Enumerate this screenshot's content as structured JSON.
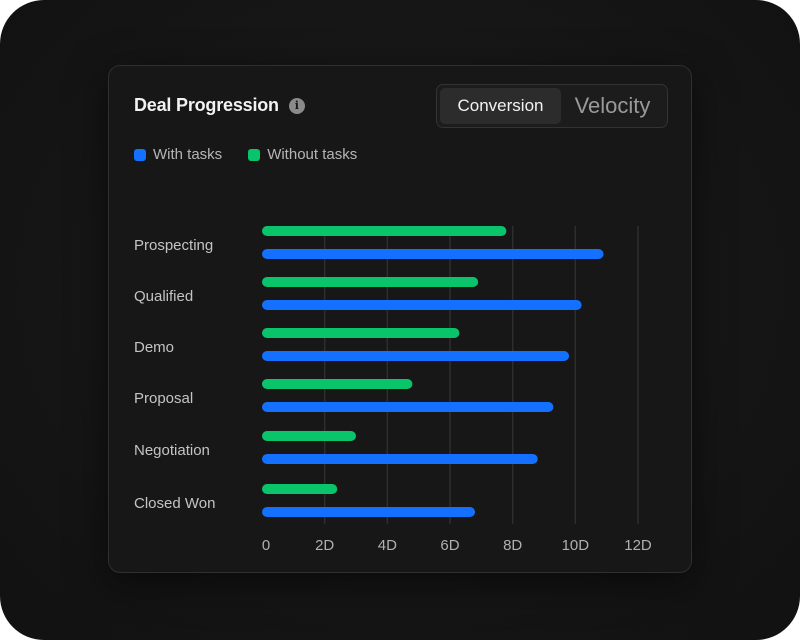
{
  "card": {
    "title": "Deal Progression",
    "info_glyph": "i"
  },
  "toggle": {
    "options": [
      "Conversion",
      "Velocity"
    ],
    "selected": "Conversion"
  },
  "colors": {
    "with_tasks": "#1470ff",
    "without_tasks": "#0ac46c",
    "grid": "#2e2e2e",
    "axis_text": "#b0b0b0",
    "label_text": "#c4c4c4"
  },
  "chart_data": {
    "type": "bar",
    "orientation": "horizontal",
    "categories": [
      "Prospecting",
      "Qualified",
      "Demo",
      "Proposal",
      "Negotiation",
      "Closed Won"
    ],
    "series": [
      {
        "name": "Without tasks",
        "color": "#0ac46c",
        "values": [
          7.8,
          6.9,
          6.3,
          4.8,
          3.0,
          2.4
        ]
      },
      {
        "name": "With tasks",
        "color": "#1470ff",
        "values": [
          10.9,
          10.2,
          9.8,
          9.3,
          8.8,
          6.8
        ]
      }
    ],
    "x_ticks": [
      0,
      2,
      4,
      6,
      8,
      10,
      12
    ],
    "x_tick_labels": [
      "0",
      "2D",
      "4D",
      "6D",
      "8D",
      "10D",
      "12D"
    ],
    "xlim": [
      0,
      12
    ],
    "grid": "vertical",
    "legend": "top-left"
  }
}
